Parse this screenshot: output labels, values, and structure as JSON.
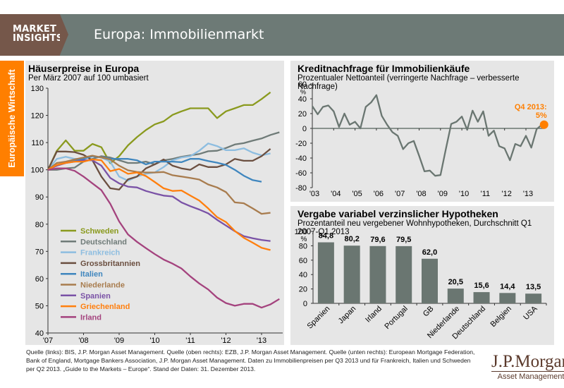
{
  "header": {
    "badge_line1": "MARKET",
    "badge_line2": "INSIGHTS",
    "title": "Europa: Immobilienmarkt"
  },
  "sidebar": {
    "label": "Europäische Wirtschaft"
  },
  "colors": {
    "header_bg": "#6d7a76",
    "badge_bg": "#75574a",
    "accent_orange": "#ff7f00",
    "panel_bg": "#e6e6e6",
    "bar_gray": "#6a7671",
    "line_gray": "#6a7671"
  },
  "chart_data": [
    {
      "id": "house_prices",
      "type": "line",
      "title": "Häuserpreise in Europa",
      "subtitle": "Per März 2007 auf 100 umbasiert",
      "xlabel": "",
      "ylabel": "",
      "ylim": [
        40,
        130
      ],
      "yticks": [
        40,
        50,
        60,
        70,
        80,
        90,
        100,
        110,
        120,
        130
      ],
      "x_start": 2007.0,
      "x_step": 0.25,
      "xlim": [
        2007.0,
        2013.55
      ],
      "xticks": [
        {
          "v": 2007,
          "label": "'07"
        },
        {
          "v": 2008,
          "label": "'08"
        },
        {
          "v": 2009,
          "label": "'09"
        },
        {
          "v": 2010,
          "label": "'10"
        },
        {
          "v": 2011,
          "label": "'11"
        },
        {
          "v": 2012,
          "label": "'12"
        },
        {
          "v": 2013,
          "label": "'13"
        }
      ],
      "legend_position": "bottom-left",
      "series": [
        {
          "name": "Schweden",
          "color": "#8a9a1e",
          "values": [
            100,
            107,
            110.8,
            107,
            107,
            109.5,
            108.3,
            102.4,
            105,
            109,
            112,
            114.6,
            116.7,
            117.8,
            120.2,
            121.5,
            122.6,
            122.6,
            122.6,
            119,
            121.5,
            122.6,
            123.8,
            123.8,
            126,
            128.5
          ]
        },
        {
          "name": "Deutschland",
          "color": "#6f7b78",
          "values": [
            100,
            100,
            100.5,
            100.8,
            103,
            104,
            105,
            104.5,
            103.5,
            102.5,
            102.5,
            103,
            102,
            103.5,
            104,
            104.8,
            105.3,
            105.8,
            106.8,
            107,
            108,
            109.3,
            109.8,
            110.7,
            111.5,
            112.8,
            113.8
          ]
        },
        {
          "name": "Frankreich",
          "color": "#8dbde0",
          "values": [
            100,
            104,
            104.8,
            104,
            104,
            105,
            104.5,
            103,
            97.5,
            96,
            97.5,
            98.5,
            99,
            101,
            103.5,
            104.5,
            105,
            107,
            109.7,
            108.7,
            107.2,
            107.2,
            107.9,
            106.3,
            105.3,
            106
          ]
        },
        {
          "name": "Grossbritannien",
          "color": "#6b4f40",
          "values": [
            100,
            106.7,
            106.7,
            106.5,
            105.5,
            103.5,
            97.5,
            93.2,
            92.7,
            96.5,
            97.5,
            100.5,
            102,
            103.8,
            101.5,
            100.5,
            100,
            102,
            101,
            101,
            102,
            104,
            103.3,
            103.3,
            105,
            107.7
          ]
        },
        {
          "name": "Italien",
          "color": "#3f86be",
          "values": [
            100,
            101.8,
            102.5,
            103.3,
            104,
            105,
            104.5,
            104,
            104,
            104,
            103.5,
            102,
            103,
            103,
            103,
            102.8,
            104,
            104,
            103.2,
            102.6,
            101.8,
            100,
            97.8,
            96.2,
            95.6
          ]
        },
        {
          "name": "Niederlande",
          "color": "#a87c4e",
          "values": [
            100,
            102.5,
            103,
            103.8,
            104.5,
            105.2,
            104.5,
            103.8,
            101.5,
            99.8,
            99.2,
            99,
            99,
            99.2,
            98,
            97.5,
            97,
            96.4,
            94.6,
            93.5,
            91.8,
            88,
            87.7,
            85.8,
            83.8,
            84.2
          ]
        },
        {
          "name": "Spanien",
          "color": "#7a52a6",
          "values": [
            100,
            101.5,
            102.5,
            103,
            103.5,
            103.5,
            101.5,
            97,
            95,
            93.8,
            93.5,
            92.2,
            91.3,
            90.5,
            90.2,
            88,
            86.6,
            85.4,
            84,
            81.6,
            79.5,
            77.4,
            75.6,
            74.8,
            74.2,
            73.8
          ]
        },
        {
          "name": "Griechenland",
          "color": "#ff7f0e",
          "values": [
            100,
            101.8,
            102.5,
            103,
            103,
            103.8,
            103.5,
            99.5,
            100.3,
            98.5,
            99,
            97.7,
            95.5,
            93.2,
            92.2,
            92.4,
            90.5,
            88.7,
            85.8,
            82.6,
            80.8,
            77.5,
            75,
            73.2,
            71.3,
            70.5
          ]
        },
        {
          "name": "Irland",
          "color": "#a4437e",
          "values": [
            100,
            100.5,
            100.5,
            99.6,
            97.5,
            95,
            92.5,
            87.5,
            81,
            76.2,
            73.5,
            71.2,
            69,
            67,
            65.5,
            63.7,
            60.8,
            58.2,
            56,
            53,
            51,
            50,
            50.7,
            50.7,
            49.3,
            50.5,
            52.5
          ]
        }
      ]
    },
    {
      "id": "credit_demand",
      "type": "line",
      "title": "Kreditnachfrage für Immobilienkäufe",
      "subtitle": "Prozentualer Nettoanteil (verringerte Nachfrage – verbesserte Nachfrage)",
      "ylabel": "%",
      "ylim": [
        -80,
        60
      ],
      "yticks": [
        -80,
        -60,
        -40,
        -20,
        0,
        20,
        40,
        60
      ],
      "x_start": 2003.0,
      "x_step": 0.25,
      "xlim": [
        2003.0,
        2014.0
      ],
      "xticks": [
        {
          "v": 2003,
          "label": "'03"
        },
        {
          "v": 2004,
          "label": "'04"
        },
        {
          "v": 2005,
          "label": "'05"
        },
        {
          "v": 2006,
          "label": "'06"
        },
        {
          "v": 2007,
          "label": "'07"
        },
        {
          "v": 2008,
          "label": "'08"
        },
        {
          "v": 2009,
          "label": "'09"
        },
        {
          "v": 2010,
          "label": "'10"
        },
        {
          "v": 2011,
          "label": "'11"
        },
        {
          "v": 2012,
          "label": "'12"
        },
        {
          "v": 2013,
          "label": "'13"
        }
      ],
      "color": "#6a7671",
      "values": [
        30,
        19,
        29,
        31,
        23,
        2,
        20,
        5,
        9,
        0,
        29,
        35,
        45,
        17,
        5,
        -5,
        -10,
        -28,
        -20,
        -17,
        -37,
        -58,
        -57,
        -64,
        -63,
        -28,
        6,
        9,
        16,
        -2,
        24,
        9,
        23,
        -10,
        -3,
        -24,
        -27,
        -43,
        -21,
        -24,
        -10,
        -26,
        -1,
        5
      ],
      "annotation": {
        "label_line1": "Q4 2013:",
        "label_line2": "5%",
        "value": 5,
        "color": "#ff7f00"
      }
    },
    {
      "id": "variable_mortgages",
      "type": "bar",
      "title": "Vergabe variabel verzinslicher Hypotheken",
      "subtitle": "Prozentanteil neu vergebener Wohnhypotheken, Durchschnitt Q1 2007-Q1 2013",
      "ylabel": "%",
      "ylim": [
        0,
        100
      ],
      "yticks": [
        0,
        20,
        40,
        60,
        80,
        100
      ],
      "categories": [
        "Spanien",
        "Japan",
        "Irland",
        "Portugal",
        "GB",
        "Niederlande",
        "Deutschland",
        "Belgien",
        "USA"
      ],
      "values": [
        84.8,
        80.2,
        79.6,
        79.5,
        62.0,
        20.5,
        15.6,
        14.4,
        13.5
      ],
      "value_labels": [
        "84,8",
        "80,2",
        "79,6",
        "79,5",
        "62,0",
        "20,5",
        "15,6",
        "14,4",
        "13,5"
      ],
      "color": "#6a7671"
    }
  ],
  "footer": {
    "source_text": "Quelle (links): BIS, J.P. Morgan Asset Management. Quelle (oben rechts): EZB, J.P. Morgan Asset Management. Quelle (unten rechts): European Mortgage Federation, Bank of England, Mortgage Bankers Association, J.P. Morgan Asset Management. Daten zu Immobilienpreisen per Q3 2013 und für Frankreich, Italien und Schweden per Q2 2013. „Guide to the Markets – Europe“. Stand der Daten: 31. Dezember 2013."
  },
  "logo": {
    "main": "J.P.Morgan",
    "sub": "Asset Management"
  }
}
